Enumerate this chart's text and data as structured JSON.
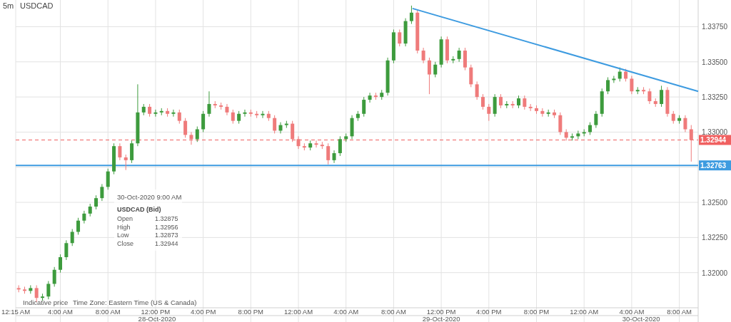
{
  "chart_data": {
    "type": "candlestick",
    "title": "USDCAD",
    "subtitle": "5m",
    "xlim": [
      "2020-10-28T00:15",
      "2020-10-30T09:35"
    ],
    "ylim": [
      1.3175,
      1.3394
    ],
    "xticks": [
      {
        "value": "2020-10-28T00:15",
        "label": "12:15 AM"
      },
      {
        "value": "2020-10-28T04:00",
        "label": "4:00 AM"
      },
      {
        "value": "2020-10-28T08:00",
        "label": "8:00 AM"
      },
      {
        "value": "2020-10-28T12:00",
        "label": "12:00 PM"
      },
      {
        "value": "2020-10-28T16:00",
        "label": "4:00 PM"
      },
      {
        "value": "2020-10-28T20:00",
        "label": "8:00 PM"
      },
      {
        "value": "2020-10-29T00:00",
        "label": "12:00 AM"
      },
      {
        "value": "2020-10-29T04:00",
        "label": "4:00 AM"
      },
      {
        "value": "2020-10-29T08:00",
        "label": "8:00 AM"
      },
      {
        "value": "2020-10-29T12:00",
        "label": "12:00 PM"
      },
      {
        "value": "2020-10-29T16:00",
        "label": "4:00 PM"
      },
      {
        "value": "2020-10-29T20:00",
        "label": "8:00 PM"
      },
      {
        "value": "2020-10-30T00:00",
        "label": "12:00 AM"
      },
      {
        "value": "2020-10-30T04:00",
        "label": "4:00 AM"
      },
      {
        "value": "2020-10-30T08:00",
        "label": "8:00 AM"
      }
    ],
    "yticks": [
      {
        "value": 1.32,
        "label": "1.32000"
      },
      {
        "value": 1.3225,
        "label": "1.32250"
      },
      {
        "value": 1.325,
        "label": "1.32500"
      },
      {
        "value": 1.3275,
        "label": null
      },
      {
        "value": 1.33,
        "label": "1.33000"
      },
      {
        "value": 1.3325,
        "label": "1.33250"
      },
      {
        "value": 1.335,
        "label": "1.33500"
      },
      {
        "value": 1.3375,
        "label": "1.33750"
      }
    ],
    "grid": true,
    "x": [
      "2020-10-28T00:30",
      "2020-10-28T01:00",
      "2020-10-28T01:30",
      "2020-10-28T02:00",
      "2020-10-28T02:30",
      "2020-10-28T03:00",
      "2020-10-28T03:30",
      "2020-10-28T04:00",
      "2020-10-28T04:30",
      "2020-10-28T05:00",
      "2020-10-28T05:30",
      "2020-10-28T06:00",
      "2020-10-28T06:30",
      "2020-10-28T07:00",
      "2020-10-28T07:30",
      "2020-10-28T08:00",
      "2020-10-28T08:30",
      "2020-10-28T09:00",
      "2020-10-28T09:30",
      "2020-10-28T10:00",
      "2020-10-28T10:30",
      "2020-10-28T11:00",
      "2020-10-28T11:30",
      "2020-10-28T12:00",
      "2020-10-28T12:30",
      "2020-10-28T13:00",
      "2020-10-28T13:30",
      "2020-10-28T14:00",
      "2020-10-28T14:30",
      "2020-10-28T15:00",
      "2020-10-28T15:30",
      "2020-10-28T16:00",
      "2020-10-28T16:30",
      "2020-10-28T17:00",
      "2020-10-28T17:30",
      "2020-10-28T18:00",
      "2020-10-28T18:30",
      "2020-10-28T19:00",
      "2020-10-28T19:30",
      "2020-10-28T20:00",
      "2020-10-28T20:30",
      "2020-10-28T21:00",
      "2020-10-28T21:30",
      "2020-10-28T22:00",
      "2020-10-28T22:30",
      "2020-10-28T23:00",
      "2020-10-28T23:30",
      "2020-10-29T00:00",
      "2020-10-29T00:30",
      "2020-10-29T01:00",
      "2020-10-29T01:30",
      "2020-10-29T02:00",
      "2020-10-29T02:30",
      "2020-10-29T03:00",
      "2020-10-29T03:30",
      "2020-10-29T04:00",
      "2020-10-29T04:30",
      "2020-10-29T05:00",
      "2020-10-29T05:30",
      "2020-10-29T06:00",
      "2020-10-29T06:30",
      "2020-10-29T07:00",
      "2020-10-29T07:30",
      "2020-10-29T08:00",
      "2020-10-29T08:30",
      "2020-10-29T09:00",
      "2020-10-29T09:30",
      "2020-10-29T10:00",
      "2020-10-29T10:30",
      "2020-10-29T11:00",
      "2020-10-29T11:30",
      "2020-10-29T12:00",
      "2020-10-29T12:30",
      "2020-10-29T13:00",
      "2020-10-29T13:30",
      "2020-10-29T14:00",
      "2020-10-29T14:30",
      "2020-10-29T15:00",
      "2020-10-29T15:30",
      "2020-10-29T16:00",
      "2020-10-29T16:30",
      "2020-10-29T17:00",
      "2020-10-29T17:30",
      "2020-10-29T18:00",
      "2020-10-29T18:30",
      "2020-10-29T19:00",
      "2020-10-29T19:30",
      "2020-10-29T20:00",
      "2020-10-29T20:30",
      "2020-10-29T21:00",
      "2020-10-29T21:30",
      "2020-10-29T22:00",
      "2020-10-29T22:30",
      "2020-10-29T23:00",
      "2020-10-29T23:30",
      "2020-10-30T00:00",
      "2020-10-30T00:30",
      "2020-10-30T01:00",
      "2020-10-30T01:30",
      "2020-10-30T02:00",
      "2020-10-30T02:30",
      "2020-10-30T03:00",
      "2020-10-30T03:30",
      "2020-10-30T04:00",
      "2020-10-30T04:30",
      "2020-10-30T05:00",
      "2020-10-30T05:30",
      "2020-10-30T06:00",
      "2020-10-30T06:30",
      "2020-10-30T07:00",
      "2020-10-30T07:30",
      "2020-10-30T08:00",
      "2020-10-30T08:30",
      "2020-10-30T09:00"
    ],
    "ohlc": [
      [
        1.3189,
        1.3191,
        1.3186,
        1.3188
      ],
      [
        1.3188,
        1.319,
        1.3185,
        1.3187
      ],
      [
        1.3187,
        1.3191,
        1.3185,
        1.3189
      ],
      [
        1.3189,
        1.3191,
        1.3179,
        1.3182
      ],
      [
        1.3182,
        1.3185,
        1.318,
        1.3183
      ],
      [
        1.3183,
        1.3194,
        1.3181,
        1.3192
      ],
      [
        1.3192,
        1.3204,
        1.319,
        1.3202
      ],
      [
        1.3202,
        1.3213,
        1.32,
        1.3211
      ],
      [
        1.3211,
        1.3223,
        1.3209,
        1.3221
      ],
      [
        1.3221,
        1.3231,
        1.3219,
        1.3229
      ],
      [
        1.3229,
        1.3239,
        1.3227,
        1.3237
      ],
      [
        1.3237,
        1.3244,
        1.3235,
        1.3242
      ],
      [
        1.3242,
        1.3249,
        1.324,
        1.3247
      ],
      [
        1.3247,
        1.3255,
        1.3245,
        1.3253
      ],
      [
        1.3253,
        1.3263,
        1.3251,
        1.3261
      ],
      [
        1.3261,
        1.3274,
        1.3259,
        1.3272
      ],
      [
        1.3272,
        1.3292,
        1.327,
        1.329
      ],
      [
        1.329,
        1.3292,
        1.328,
        1.3282
      ],
      [
        1.3282,
        1.3284,
        1.3273,
        1.328
      ],
      [
        1.328,
        1.3294,
        1.3278,
        1.3292
      ],
      [
        1.3292,
        1.3334,
        1.329,
        1.3314
      ],
      [
        1.3314,
        1.332,
        1.3312,
        1.3318
      ],
      [
        1.3318,
        1.332,
        1.3311,
        1.3313
      ],
      [
        1.3313,
        1.3316,
        1.3311,
        1.3314
      ],
      [
        1.3314,
        1.3317,
        1.3312,
        1.3315
      ],
      [
        1.3315,
        1.3317,
        1.3311,
        1.3313
      ],
      [
        1.3313,
        1.3316,
        1.3311,
        1.3314
      ],
      [
        1.3314,
        1.3316,
        1.3306,
        1.3308
      ],
      [
        1.3308,
        1.331,
        1.3296,
        1.3298
      ],
      [
        1.3298,
        1.33,
        1.3291,
        1.3295
      ],
      [
        1.3295,
        1.3304,
        1.3293,
        1.3302
      ],
      [
        1.3302,
        1.3315,
        1.33,
        1.3313
      ],
      [
        1.3313,
        1.3329,
        1.3311,
        1.332
      ],
      [
        1.332,
        1.3322,
        1.3317,
        1.3319
      ],
      [
        1.3319,
        1.3321,
        1.3316,
        1.3318
      ],
      [
        1.3318,
        1.332,
        1.3312,
        1.3314
      ],
      [
        1.3314,
        1.3316,
        1.3306,
        1.3308
      ],
      [
        1.3308,
        1.3315,
        1.3306,
        1.3313
      ],
      [
        1.3313,
        1.3316,
        1.3311,
        1.3314
      ],
      [
        1.3314,
        1.3316,
        1.3311,
        1.3313
      ],
      [
        1.3313,
        1.3315,
        1.331,
        1.3312
      ],
      [
        1.3312,
        1.3315,
        1.331,
        1.3313
      ],
      [
        1.3313,
        1.3315,
        1.3308,
        1.331
      ],
      [
        1.331,
        1.3312,
        1.3299,
        1.3301
      ],
      [
        1.3301,
        1.3307,
        1.3299,
        1.3305
      ],
      [
        1.3305,
        1.3308,
        1.3303,
        1.3306
      ],
      [
        1.3306,
        1.3308,
        1.3293,
        1.3295
      ],
      [
        1.3295,
        1.3297,
        1.3288,
        1.329
      ],
      [
        1.329,
        1.3292,
        1.3287,
        1.3289
      ],
      [
        1.3289,
        1.3294,
        1.3287,
        1.3292
      ],
      [
        1.3292,
        1.3294,
        1.3289,
        1.3291
      ],
      [
        1.3291,
        1.3293,
        1.3288,
        1.329
      ],
      [
        1.329,
        1.3292,
        1.3277,
        1.328
      ],
      [
        1.328,
        1.3287,
        1.3278,
        1.3285
      ],
      [
        1.3285,
        1.3297,
        1.3283,
        1.3295
      ],
      [
        1.3295,
        1.3299,
        1.3293,
        1.3297
      ],
      [
        1.3297,
        1.3312,
        1.3295,
        1.331
      ],
      [
        1.331,
        1.3315,
        1.3308,
        1.3313
      ],
      [
        1.3313,
        1.3325,
        1.3311,
        1.3323
      ],
      [
        1.3323,
        1.3328,
        1.3321,
        1.3326
      ],
      [
        1.3326,
        1.3328,
        1.3323,
        1.3325
      ],
      [
        1.3325,
        1.333,
        1.3323,
        1.3328
      ],
      [
        1.3328,
        1.3353,
        1.3326,
        1.3351
      ],
      [
        1.3351,
        1.3373,
        1.3349,
        1.3371
      ],
      [
        1.3371,
        1.3373,
        1.3361,
        1.3363
      ],
      [
        1.3363,
        1.3381,
        1.3361,
        1.3379
      ],
      [
        1.3379,
        1.339,
        1.3377,
        1.3385
      ],
      [
        1.3385,
        1.3387,
        1.3356,
        1.3358
      ],
      [
        1.3358,
        1.336,
        1.3349,
        1.3351
      ],
      [
        1.3351,
        1.3353,
        1.3327,
        1.3341
      ],
      [
        1.3341,
        1.335,
        1.3339,
        1.3348
      ],
      [
        1.3348,
        1.3368,
        1.3346,
        1.3366
      ],
      [
        1.3366,
        1.3368,
        1.3349,
        1.3351
      ],
      [
        1.3351,
        1.3354,
        1.3349,
        1.3352
      ],
      [
        1.3352,
        1.336,
        1.335,
        1.3358
      ],
      [
        1.3358,
        1.336,
        1.3344,
        1.3346
      ],
      [
        1.3346,
        1.3348,
        1.3332,
        1.3334
      ],
      [
        1.3334,
        1.3336,
        1.3323,
        1.3325
      ],
      [
        1.3325,
        1.3327,
        1.3316,
        1.3318
      ],
      [
        1.3318,
        1.332,
        1.3308,
        1.3313
      ],
      [
        1.3313,
        1.3327,
        1.3311,
        1.3325
      ],
      [
        1.3325,
        1.3327,
        1.3317,
        1.3319
      ],
      [
        1.3319,
        1.3322,
        1.3317,
        1.332
      ],
      [
        1.332,
        1.3322,
        1.3317,
        1.3319
      ],
      [
        1.3319,
        1.3326,
        1.3317,
        1.3324
      ],
      [
        1.3324,
        1.3326,
        1.3316,
        1.3318
      ],
      [
        1.3318,
        1.332,
        1.3315,
        1.3317
      ],
      [
        1.3317,
        1.3319,
        1.3313,
        1.3315
      ],
      [
        1.3315,
        1.3317,
        1.3311,
        1.3313
      ],
      [
        1.3313,
        1.3316,
        1.3311,
        1.3314
      ],
      [
        1.3314,
        1.3316,
        1.331,
        1.3312
      ],
      [
        1.3312,
        1.3314,
        1.3298,
        1.33
      ],
      [
        1.33,
        1.3302,
        1.3294,
        1.3296
      ],
      [
        1.3296,
        1.3299,
        1.3294,
        1.3297
      ],
      [
        1.3297,
        1.3301,
        1.3295,
        1.3299
      ],
      [
        1.3299,
        1.3302,
        1.3297,
        1.33
      ],
      [
        1.33,
        1.3307,
        1.3298,
        1.3305
      ],
      [
        1.3305,
        1.3315,
        1.3303,
        1.3313
      ],
      [
        1.3313,
        1.3331,
        1.3311,
        1.3329
      ],
      [
        1.3329,
        1.3339,
        1.3327,
        1.3337
      ],
      [
        1.3337,
        1.334,
        1.3335,
        1.3338
      ],
      [
        1.3338,
        1.3346,
        1.3336,
        1.3343
      ],
      [
        1.3343,
        1.3345,
        1.3336,
        1.3338
      ],
      [
        1.3338,
        1.334,
        1.3327,
        1.3329
      ],
      [
        1.3329,
        1.3332,
        1.3327,
        1.333
      ],
      [
        1.333,
        1.3332,
        1.3327,
        1.3329
      ],
      [
        1.3329,
        1.3331,
        1.332,
        1.3322
      ],
      [
        1.3322,
        1.3324,
        1.3318,
        1.332
      ],
      [
        1.332,
        1.3333,
        1.3318,
        1.333
      ],
      [
        1.333,
        1.3332,
        1.3311,
        1.3313
      ],
      [
        1.3313,
        1.3315,
        1.3306,
        1.3308
      ],
      [
        1.3308,
        1.3312,
        1.3306,
        1.331
      ],
      [
        1.331,
        1.3312,
        1.33,
        1.3302
      ],
      [
        1.3302,
        1.3305,
        1.3279,
        1.32944
      ]
    ],
    "colors": [
      "#ef7b7b",
      "#ef7b7b",
      "#3d9b3d",
      "#ef7b7b",
      "#3d9b3d",
      "#3d9b3d",
      "#3d9b3d",
      "#3d9b3d",
      "#3d9b3d",
      "#3d9b3d",
      "#3d9b3d",
      "#3d9b3d",
      "#3d9b3d",
      "#3d9b3d",
      "#3d9b3d",
      "#3d9b3d",
      "#3d9b3d",
      "#ef7b7b",
      "#ef7b7b",
      "#3d9b3d",
      "#3d9b3d",
      "#3d9b3d",
      "#ef7b7b",
      "#3d9b3d",
      "#3d9b3d",
      "#ef7b7b",
      "#3d9b3d",
      "#ef7b7b",
      "#ef7b7b",
      "#ef7b7b",
      "#3d9b3d",
      "#3d9b3d",
      "#3d9b3d",
      "#ef7b7b",
      "#ef7b7b",
      "#ef7b7b",
      "#ef7b7b",
      "#3d9b3d",
      "#3d9b3d",
      "#ef7b7b",
      "#ef7b7b",
      "#3d9b3d",
      "#ef7b7b",
      "#ef7b7b",
      "#3d9b3d",
      "#3d9b3d",
      "#ef7b7b",
      "#ef7b7b",
      "#ef7b7b",
      "#3d9b3d",
      "#ef7b7b",
      "#ef7b7b",
      "#ef7b7b",
      "#3d9b3d",
      "#3d9b3d",
      "#3d9b3d",
      "#3d9b3d",
      "#3d9b3d",
      "#3d9b3d",
      "#3d9b3d",
      "#ef7b7b",
      "#3d9b3d",
      "#3d9b3d",
      "#3d9b3d",
      "#ef7b7b",
      "#3d9b3d",
      "#3d9b3d",
      "#ef7b7b",
      "#ef7b7b",
      "#ef7b7b",
      "#3d9b3d",
      "#3d9b3d",
      "#ef7b7b",
      "#3d9b3d",
      "#3d9b3d",
      "#ef7b7b",
      "#ef7b7b",
      "#ef7b7b",
      "#ef7b7b",
      "#ef7b7b",
      "#3d9b3d",
      "#ef7b7b",
      "#3d9b3d",
      "#ef7b7b",
      "#3d9b3d",
      "#ef7b7b",
      "#ef7b7b",
      "#ef7b7b",
      "#ef7b7b",
      "#3d9b3d",
      "#ef7b7b",
      "#ef7b7b",
      "#ef7b7b",
      "#3d9b3d",
      "#3d9b3d",
      "#3d9b3d",
      "#3d9b3d",
      "#3d9b3d",
      "#3d9b3d",
      "#3d9b3d",
      "#3d9b3d",
      "#3d9b3d",
      "#ef7b7b",
      "#ef7b7b",
      "#3d9b3d",
      "#ef7b7b",
      "#ef7b7b",
      "#ef7b7b",
      "#3d9b3d",
      "#ef7b7b",
      "#ef7b7b",
      "#3d9b3d",
      "#ef7b7b",
      "#ef7b7b"
    ],
    "series": [
      {
        "type": "line",
        "color": "#3d9be0",
        "x": [
          "2020-10-29T09:35",
          "2020-10-30T09:35"
        ],
        "values": [
          1.3388,
          1.3329
        ]
      }
    ],
    "ref_lines": [
      {
        "axis": "y",
        "value": 1.32944,
        "label": "1.32944",
        "color": "#f06060",
        "line_style": "dashed"
      },
      {
        "axis": "y",
        "value": 1.32763,
        "label": "1.32763",
        "color": "#3d9be0",
        "line_style": "solid"
      }
    ],
    "annotations": [
      "Indicative price",
      "Time Zone: Eastern Time (US & Canada)",
      "30-Oct-2020 9:00 AM",
      "USDCAD (Bid)",
      "Open",
      "1.32875",
      "High",
      "1.32956",
      "Low",
      "1.32873",
      "Close",
      "1.32944",
      "28-Oct-2020",
      "29-Oct-2020",
      "30-Oct-2020"
    ]
  }
}
